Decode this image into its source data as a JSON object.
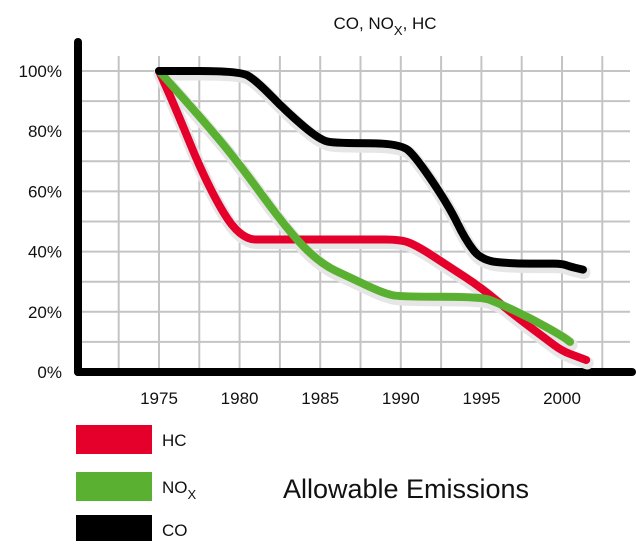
{
  "chart_data": {
    "type": "line",
    "title": {
      "main": "CO, NO",
      "sub": "X",
      "tail": ", HC"
    },
    "caption": "Allowable Emissions",
    "xlabel": "",
    "ylabel": "",
    "x_ticks": [
      "1975",
      "1980",
      "1985",
      "1990",
      "1995",
      "2000"
    ],
    "y_ticks": [
      "0%",
      "20%",
      "40%",
      "60%",
      "80%",
      "100%"
    ],
    "xlim": [
      1970,
      2005
    ],
    "ylim": [
      0,
      100
    ],
    "grid": true,
    "legend_position": "bottom-left",
    "series": [
      {
        "name": "HC",
        "name_sub": "",
        "color": "#e4002b",
        "points": [
          [
            1975,
            100
          ],
          [
            1976,
            88
          ],
          [
            1978,
            62
          ],
          [
            1980,
            44
          ],
          [
            1982,
            44
          ],
          [
            1985,
            44
          ],
          [
            1988,
            44
          ],
          [
            1990,
            44
          ],
          [
            1991,
            42
          ],
          [
            1993,
            35
          ],
          [
            1995,
            28
          ],
          [
            1997,
            19
          ],
          [
            1999,
            11
          ],
          [
            2000,
            7
          ],
          [
            2001,
            5
          ],
          [
            2001.5,
            4
          ]
        ]
      },
      {
        "name": "NO",
        "name_sub": "X",
        "color": "#5ab031",
        "points": [
          [
            1975,
            100
          ],
          [
            1978,
            82
          ],
          [
            1980,
            69
          ],
          [
            1983,
            47
          ],
          [
            1985,
            36
          ],
          [
            1987,
            31
          ],
          [
            1989,
            26
          ],
          [
            1990,
            25
          ],
          [
            1995,
            25
          ],
          [
            1996,
            23
          ],
          [
            1998,
            18
          ],
          [
            2000,
            12
          ],
          [
            2000.5,
            10
          ]
        ]
      },
      {
        "name": "CO",
        "name_sub": "",
        "color": "#000000",
        "points": [
          [
            1975,
            100
          ],
          [
            1980,
            100
          ],
          [
            1981,
            97
          ],
          [
            1983,
            86
          ],
          [
            1985,
            77
          ],
          [
            1986,
            76
          ],
          [
            1990,
            76
          ],
          [
            1991,
            71
          ],
          [
            1993,
            55
          ],
          [
            1994,
            44
          ],
          [
            1995,
            37
          ],
          [
            1997,
            36
          ],
          [
            1999,
            36
          ],
          [
            2000,
            36
          ],
          [
            2000.5,
            35
          ],
          [
            2001.3,
            34
          ]
        ]
      }
    ]
  }
}
